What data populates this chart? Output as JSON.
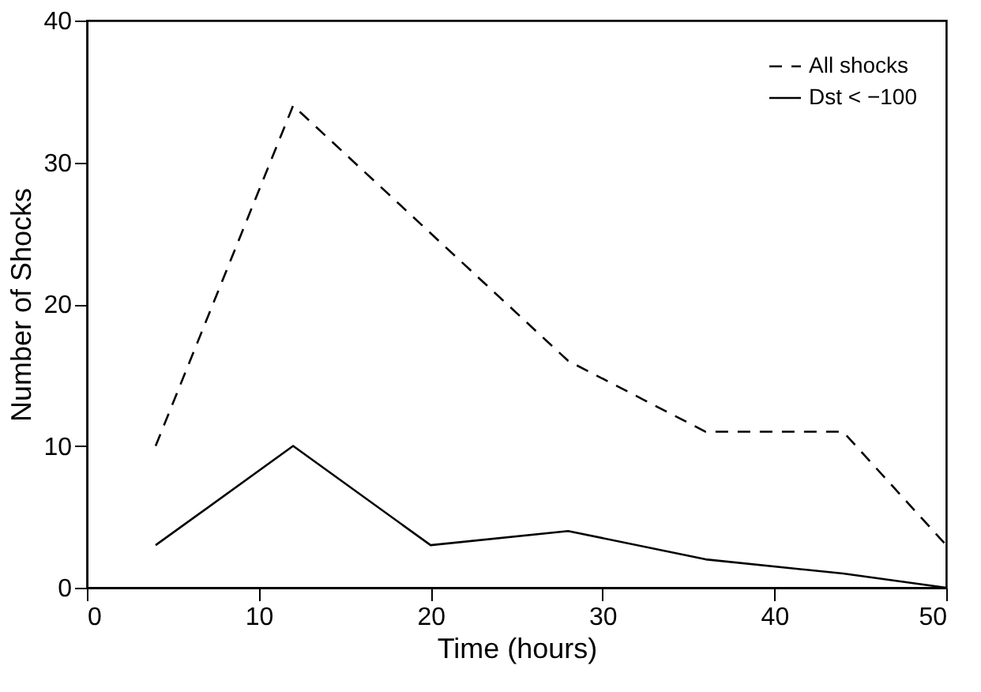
{
  "chart_data": {
    "type": "line",
    "xlabel": "Time (hours)",
    "ylabel": "Number of Shocks",
    "x": [
      4,
      12,
      20,
      28,
      36,
      44,
      50
    ],
    "series": [
      {
        "name": "All shocks",
        "color": "#000000",
        "line_style": "dashed",
        "values": [
          10,
          34,
          25,
          16,
          11,
          11,
          3
        ]
      },
      {
        "name": "Dst < −100",
        "color": "#000000",
        "line_style": "solid",
        "values": [
          3,
          10,
          3,
          4,
          2,
          1,
          0
        ]
      }
    ],
    "xlim": [
      0,
      50
    ],
    "xticks": [
      0,
      10,
      20,
      30,
      40,
      50
    ],
    "ylim": [
      0,
      40
    ],
    "yticks": [
      0,
      10,
      20,
      30,
      40
    ],
    "grid": false,
    "legend": "top right",
    "marker": "none"
  }
}
